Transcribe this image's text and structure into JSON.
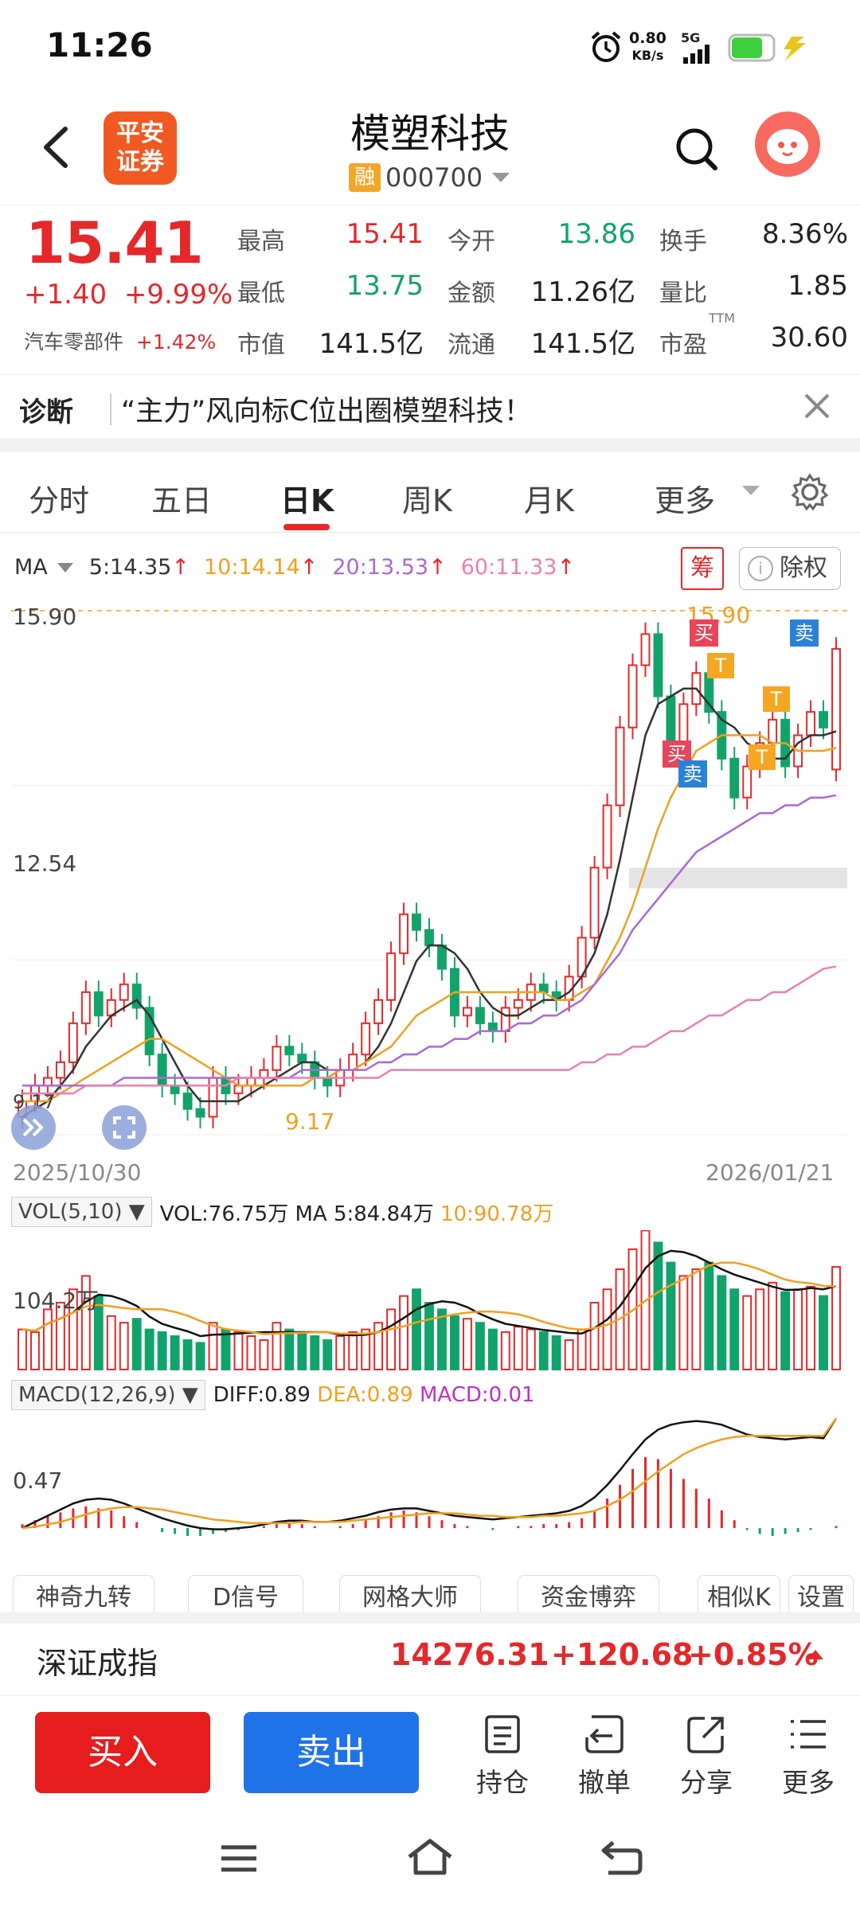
{
  "status_bar": {
    "time": "11:26",
    "net_speed_value": "0.80",
    "net_speed_unit": "KB/s",
    "network": "5G"
  },
  "header": {
    "broker_logo_text_1": "平安",
    "broker_logo_text_2": "证券",
    "stock_name": "模塑科技",
    "margin_tag": "融",
    "stock_code": "000700"
  },
  "quote": {
    "price": "15.41",
    "change": "+1.40",
    "change_pct": "+9.99%",
    "sector": "汽车零部件",
    "sector_pct": "+1.42%",
    "high_label": "最高",
    "high": "15.41",
    "open_label": "今开",
    "open": "13.86",
    "turnover_label": "换手",
    "turnover": "8.36%",
    "low_label": "最低",
    "low": "13.75",
    "amount_label": "金额",
    "amount": "11.26亿",
    "vol_ratio_label": "量比",
    "vol_ratio": "1.85",
    "mktcap_label": "市值",
    "mktcap": "141.5亿",
    "float_label": "流通",
    "float_cap": "141.5亿",
    "pe_label": "市盈",
    "pe_sup": "TTM",
    "pe": "30.60"
  },
  "diagnosis": {
    "tag": "诊断",
    "text": "“主力”风向标C位出圈模塑科技！"
  },
  "tabs": [
    "分时",
    "五日",
    "日K",
    "周K",
    "月K",
    "更多"
  ],
  "active_tab": "日K",
  "ma": {
    "label": "MA",
    "ma5": "5:14.35",
    "ma10": "10:14.14",
    "ma20": "20:13.53",
    "ma60": "60:11.33",
    "arrow": "↑"
  },
  "chart_buttons": {
    "chip": "筹",
    "chuquan": "除权",
    "info": "i"
  },
  "kline": {
    "y_top_label": "15.90",
    "y_mid_label": "12.54",
    "y_bot_label": "9.17",
    "high_marker": "15.90",
    "low_marker": "9.17",
    "date_start": "2025/10/30",
    "date_end": "2026/01/21",
    "signals": {
      "buy": "买",
      "sell": "卖",
      "t": "T"
    }
  },
  "volume": {
    "label": "VOL(5,10)",
    "vol": "VOL:76.75万",
    "ma5": "MA 5:84.84万",
    "ma10": "10:90.78万",
    "y_label": "104.2万"
  },
  "macd": {
    "label": "MACD(12,26,9)",
    "diff": "DIFF:0.89",
    "dea": "DEA:0.89",
    "macd": "MACD:0.01",
    "y_label": "0.47"
  },
  "indicator_tabs": [
    "神奇九转",
    "D信号",
    "网格大师",
    "资金博弈",
    "相似K",
    "设置"
  ],
  "index": {
    "name": "深证成指",
    "value": "14276.31",
    "change": "+120.68",
    "pct": "+0.85%"
  },
  "trade": {
    "buy": "买入",
    "sell": "卖出",
    "position": "持仓",
    "cancel": "撤单",
    "share": "分享",
    "more": "更多"
  },
  "colors": {
    "up": "#e5282a",
    "down": "#12a36a",
    "ma5": "#333333",
    "ma10": "#f0a020",
    "ma20": "#a86ad6",
    "ma60": "#ec7fb0",
    "buy_btn": "#e71c1c",
    "sell_btn": "#1f73e8",
    "accent": "#f05a22"
  },
  "chart_data": [
    {
      "type": "candlestick",
      "title": "日K",
      "x_range": [
        "2025/10/30",
        "2026/01/21"
      ],
      "ylim": [
        9.17,
        15.9
      ],
      "closes": [
        9.6,
        9.8,
        9.9,
        10.1,
        10.6,
        11.0,
        10.7,
        10.9,
        11.1,
        10.8,
        10.2,
        9.8,
        9.7,
        9.5,
        9.4,
        9.9,
        9.7,
        9.8,
        9.9,
        10.0,
        10.3,
        10.2,
        10.1,
        9.9,
        9.8,
        10.0,
        10.2,
        10.6,
        10.9,
        11.5,
        12.0,
        11.8,
        11.6,
        11.3,
        10.7,
        10.8,
        10.6,
        10.5,
        10.8,
        10.9,
        11.1,
        11.0,
        10.9,
        11.2,
        11.7,
        12.6,
        13.4,
        14.4,
        15.2,
        15.6,
        14.8,
        14.2,
        14.7,
        15.1,
        14.6,
        14.0,
        13.5,
        13.9,
        14.2,
        14.5,
        13.9,
        14.3,
        14.6,
        14.4,
        15.41
      ],
      "opens": [
        9.4,
        9.6,
        9.8,
        9.9,
        10.1,
        10.6,
        11.0,
        10.7,
        10.9,
        11.1,
        10.8,
        10.2,
        9.8,
        9.7,
        9.5,
        9.4,
        9.9,
        9.7,
        9.8,
        9.9,
        10.0,
        10.3,
        10.2,
        10.1,
        9.9,
        9.8,
        10.0,
        10.2,
        10.6,
        10.9,
        11.5,
        12.0,
        11.8,
        11.6,
        11.3,
        10.7,
        10.8,
        10.6,
        10.5,
        10.8,
        10.9,
        11.1,
        11.0,
        10.9,
        11.2,
        11.7,
        12.6,
        13.4,
        14.4,
        15.2,
        15.6,
        14.8,
        14.2,
        14.7,
        15.1,
        14.6,
        14.0,
        13.5,
        13.9,
        14.2,
        14.5,
        13.9,
        14.3,
        14.6,
        13.86
      ],
      "ma5": [
        9.4,
        9.5,
        9.6,
        9.8,
        10.0,
        10.3,
        10.5,
        10.7,
        10.8,
        10.9,
        10.7,
        10.4,
        10.1,
        9.8,
        9.6,
        9.6,
        9.6,
        9.6,
        9.7,
        9.8,
        9.9,
        10.0,
        10.1,
        10.1,
        10.0,
        10.0,
        10.0,
        10.1,
        10.3,
        10.6,
        11.0,
        11.4,
        11.6,
        11.6,
        11.5,
        11.3,
        11.0,
        10.8,
        10.7,
        10.7,
        10.8,
        10.9,
        10.9,
        11.0,
        11.2,
        11.5,
        12.0,
        12.7,
        13.5,
        14.3,
        14.7,
        14.8,
        14.9,
        14.9,
        14.7,
        14.5,
        14.4,
        14.2,
        14.1,
        14.0,
        14.0,
        14.2,
        14.3,
        14.3,
        14.35
      ],
      "ma10": [
        9.6,
        9.6,
        9.6,
        9.7,
        9.8,
        9.9,
        10.0,
        10.1,
        10.2,
        10.3,
        10.4,
        10.4,
        10.3,
        10.2,
        10.1,
        10.0,
        9.9,
        9.8,
        9.8,
        9.8,
        9.8,
        9.8,
        9.8,
        9.9,
        9.9,
        10.0,
        10.0,
        10.1,
        10.2,
        10.3,
        10.5,
        10.7,
        10.8,
        10.9,
        11.0,
        11.0,
        11.0,
        11.0,
        11.0,
        11.0,
        11.0,
        11.0,
        10.9,
        10.9,
        11.0,
        11.1,
        11.4,
        11.7,
        12.1,
        12.6,
        13.1,
        13.5,
        13.8,
        14.1,
        14.2,
        14.3,
        14.3,
        14.3,
        14.3,
        14.2,
        14.2,
        14.1,
        14.1,
        14.1,
        14.14
      ],
      "ma20": [
        9.8,
        9.8,
        9.8,
        9.8,
        9.8,
        9.8,
        9.8,
        9.8,
        9.9,
        9.9,
        9.9,
        9.9,
        9.9,
        9.9,
        9.9,
        9.9,
        9.9,
        9.9,
        9.9,
        9.9,
        9.9,
        9.9,
        10.0,
        10.0,
        10.0,
        10.0,
        10.0,
        10.0,
        10.1,
        10.1,
        10.2,
        10.2,
        10.3,
        10.3,
        10.4,
        10.4,
        10.5,
        10.5,
        10.5,
        10.6,
        10.6,
        10.7,
        10.7,
        10.8,
        10.9,
        11.1,
        11.3,
        11.5,
        11.8,
        12.0,
        12.2,
        12.4,
        12.6,
        12.8,
        12.9,
        13.0,
        13.1,
        13.2,
        13.3,
        13.3,
        13.4,
        13.4,
        13.5,
        13.5,
        13.53
      ],
      "ma60": [
        9.7,
        9.7,
        9.7,
        9.7,
        9.7,
        9.8,
        9.8,
        9.8,
        9.8,
        9.8,
        9.8,
        9.8,
        9.8,
        9.8,
        9.8,
        9.8,
        9.8,
        9.9,
        9.9,
        9.9,
        9.9,
        9.9,
        9.9,
        9.9,
        9.9,
        9.9,
        9.9,
        9.9,
        9.9,
        10.0,
        10.0,
        10.0,
        10.0,
        10.0,
        10.0,
        10.0,
        10.0,
        10.0,
        10.0,
        10.0,
        10.0,
        10.0,
        10.0,
        10.0,
        10.1,
        10.1,
        10.2,
        10.2,
        10.3,
        10.3,
        10.4,
        10.5,
        10.5,
        10.6,
        10.7,
        10.7,
        10.8,
        10.9,
        10.9,
        11.0,
        11.0,
        11.1,
        11.2,
        11.3,
        11.33
      ]
    },
    {
      "type": "bar",
      "title": "VOL(5,10)",
      "ylim": [
        0,
        104.2
      ],
      "values": [
        30,
        28,
        45,
        50,
        60,
        70,
        55,
        40,
        35,
        38,
        30,
        28,
        25,
        22,
        20,
        35,
        30,
        28,
        25,
        22,
        35,
        30,
        28,
        25,
        22,
        25,
        28,
        30,
        35,
        45,
        55,
        60,
        50,
        45,
        40,
        38,
        35,
        30,
        28,
        32,
        30,
        28,
        25,
        22,
        30,
        50,
        60,
        75,
        90,
        104,
        95,
        80,
        70,
        75,
        80,
        70,
        60,
        55,
        60,
        65,
        58,
        60,
        62,
        55,
        76.75
      ]
    },
    {
      "type": "bar",
      "title": "MACD(12,26,9)",
      "ylim": [
        -0.2,
        0.9
      ],
      "values": [
        0.02,
        0.04,
        0.06,
        0.08,
        0.1,
        0.11,
        0.1,
        0.09,
        0.06,
        0.03,
        0.0,
        -0.02,
        -0.03,
        -0.04,
        -0.04,
        -0.03,
        -0.02,
        -0.01,
        0.0,
        0.01,
        0.02,
        0.03,
        0.02,
        0.01,
        0.0,
        0.01,
        0.02,
        0.04,
        0.06,
        0.08,
        0.09,
        0.08,
        0.06,
        0.04,
        0.02,
        0.01,
        0.0,
        -0.01,
        0.0,
        0.01,
        0.01,
        0.02,
        0.02,
        0.03,
        0.05,
        0.09,
        0.15,
        0.22,
        0.3,
        0.36,
        0.35,
        0.3,
        0.25,
        0.2,
        0.15,
        0.09,
        0.04,
        -0.01,
        -0.03,
        -0.04,
        -0.03,
        -0.02,
        -0.01,
        0.0,
        0.01
      ],
      "diff": [
        0.0,
        0.05,
        0.1,
        0.15,
        0.2,
        0.23,
        0.24,
        0.23,
        0.2,
        0.16,
        0.12,
        0.08,
        0.05,
        0.02,
        0.0,
        -0.01,
        -0.01,
        0.0,
        0.01,
        0.03,
        0.05,
        0.06,
        0.06,
        0.05,
        0.05,
        0.06,
        0.08,
        0.1,
        0.13,
        0.15,
        0.16,
        0.16,
        0.14,
        0.12,
        0.1,
        0.09,
        0.08,
        0.07,
        0.08,
        0.09,
        0.1,
        0.11,
        0.12,
        0.14,
        0.18,
        0.25,
        0.35,
        0.47,
        0.6,
        0.72,
        0.8,
        0.84,
        0.86,
        0.87,
        0.86,
        0.84,
        0.8,
        0.76,
        0.74,
        0.73,
        0.72,
        0.73,
        0.74,
        0.73,
        0.89
      ],
      "dea": [
        0.0,
        0.01,
        0.03,
        0.05,
        0.08,
        0.11,
        0.14,
        0.16,
        0.17,
        0.17,
        0.16,
        0.15,
        0.13,
        0.11,
        0.09,
        0.07,
        0.06,
        0.05,
        0.04,
        0.04,
        0.04,
        0.04,
        0.05,
        0.05,
        0.05,
        0.05,
        0.06,
        0.07,
        0.08,
        0.09,
        0.1,
        0.11,
        0.12,
        0.12,
        0.12,
        0.11,
        0.1,
        0.1,
        0.09,
        0.09,
        0.09,
        0.1,
        0.1,
        0.11,
        0.12,
        0.14,
        0.18,
        0.23,
        0.3,
        0.38,
        0.46,
        0.53,
        0.6,
        0.65,
        0.69,
        0.72,
        0.74,
        0.75,
        0.75,
        0.75,
        0.75,
        0.75,
        0.75,
        0.75,
        0.89
      ]
    }
  ]
}
